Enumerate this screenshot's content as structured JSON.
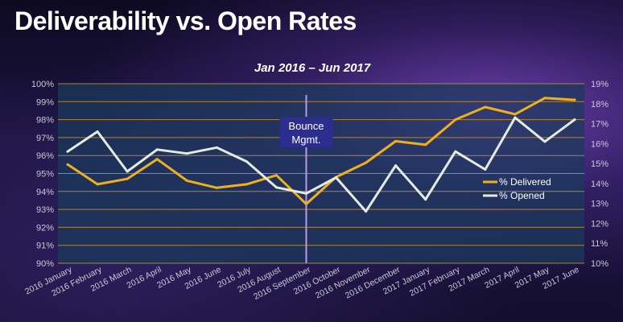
{
  "title": "Deliverability vs. Open Rates",
  "colors": {
    "plot_area": "#1a3a5c",
    "grid": "#c8923a",
    "delivered": "#f0b019",
    "opened": "#e4ebe0",
    "annotation_line": "#b89ae8",
    "annotation_box": "#2c2e8f"
  },
  "chart_data": {
    "type": "line",
    "title": "Jan 2016 – Jun 2017",
    "categories": [
      "2016 January",
      "2016 February",
      "2016 March",
      "2016 April",
      "2016 May",
      "2016 June",
      "2016 July",
      "2016 August",
      "2016 September",
      "2016 October",
      "2016 November",
      "2016 December",
      "2017 January",
      "2017 February",
      "2017 March",
      "2017 April",
      "2017 May",
      "2017 June"
    ],
    "series": [
      {
        "name": "% Delivered",
        "axis": "left",
        "values": [
          95.5,
          94.4,
          94.7,
          95.8,
          94.6,
          94.2,
          94.4,
          94.9,
          93.3,
          94.8,
          95.6,
          96.8,
          96.6,
          98.0,
          98.7,
          98.3,
          99.2,
          99.1
        ]
      },
      {
        "name": "% Opened",
        "axis": "right",
        "values": [
          15.6,
          16.6,
          14.6,
          15.7,
          15.5,
          15.8,
          15.1,
          13.8,
          13.5,
          14.3,
          12.6,
          14.9,
          13.2,
          15.6,
          14.7,
          17.3,
          16.1,
          17.2
        ]
      }
    ],
    "ylim_left": [
      90,
      100
    ],
    "yticks_left": [
      "90%",
      "91%",
      "92%",
      "93%",
      "94%",
      "95%",
      "96%",
      "97%",
      "98%",
      "99%",
      "100%"
    ],
    "ylim_right": [
      10,
      19
    ],
    "yticks_right": [
      "10%",
      "11%",
      "12%",
      "13%",
      "14%",
      "15%",
      "16%",
      "17%",
      "18%",
      "19%"
    ],
    "grid": true,
    "legend": {
      "placement": "inside-right",
      "entries": [
        "% Delivered",
        "% Opened"
      ]
    },
    "annotation": {
      "label_line1": "Bounce",
      "label_line2": "Mgmt.",
      "at_index": 8
    }
  }
}
